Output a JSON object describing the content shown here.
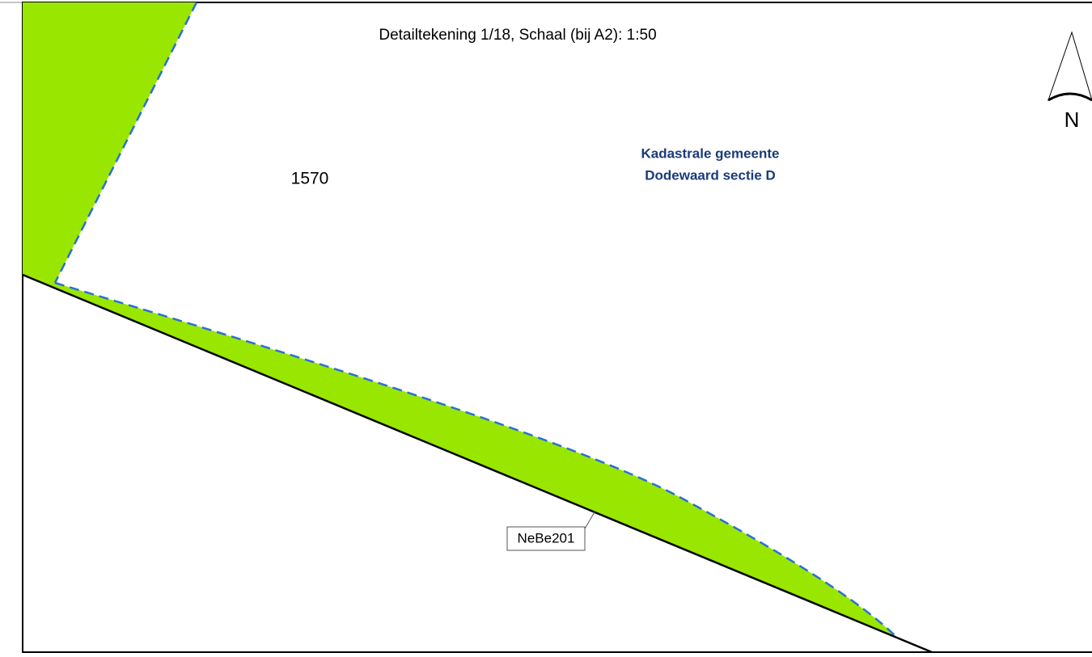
{
  "map": {
    "title": "Detailtekening 1/18,   Schaal (bij A2): 1:50",
    "parcel_number": "1570",
    "municipality": [
      "Kadastrale gemeente",
      "Dodewaard sectie D"
    ],
    "north_label": "N",
    "callout": "NeBe201"
  }
}
